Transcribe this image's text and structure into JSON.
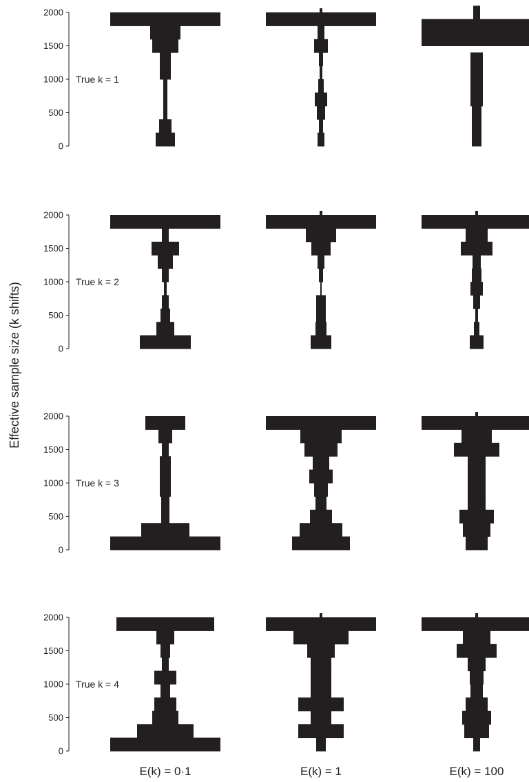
{
  "chart_data": {
    "type": "bar",
    "orientation": "symmetric-horizontal",
    "ylabel": "Effective sample size (k shifts)",
    "ylim": [
      0,
      2000
    ],
    "yticks": [
      0,
      500,
      1000,
      1500,
      2000
    ],
    "bin_width": 200,
    "columns": [
      "E(k) = 0·1",
      "E(k) = 1",
      "E(k) = 100"
    ],
    "rows": [
      "True k = 1",
      "True k = 2",
      "True k = 3",
      "True k = 4"
    ],
    "panels": [
      [
        {
          "row": 0,
          "col": 0,
          "bars": [
            [
              100,
              28
            ],
            [
              300,
              18
            ],
            [
              500,
              6
            ],
            [
              700,
              6
            ],
            [
              900,
              6
            ],
            [
              1100,
              16
            ],
            [
              1300,
              16
            ],
            [
              1500,
              38
            ],
            [
              1700,
              44
            ],
            [
              1900,
              160
            ]
          ]
        },
        {
          "row": 0,
          "col": 1,
          "bars": [
            [
              100,
              10
            ],
            [
              300,
              6
            ],
            [
              500,
              12
            ],
            [
              700,
              18
            ],
            [
              900,
              8
            ],
            [
              1100,
              4
            ],
            [
              1300,
              6
            ],
            [
              1500,
              20
            ],
            [
              1700,
              10
            ],
            [
              1900,
              160
            ],
            [
              2040,
              4
            ]
          ]
        },
        {
          "row": 0,
          "col": 2,
          "bars": [
            [
              100,
              14
            ],
            [
              300,
              14
            ],
            [
              500,
              14
            ],
            [
              700,
              18
            ],
            [
              900,
              18
            ],
            [
              1100,
              18
            ],
            [
              1300,
              18
            ],
            [
              1600,
              160
            ],
            [
              1800,
              160
            ],
            [
              2000,
              10
            ]
          ]
        }
      ],
      [
        {
          "row": 1,
          "col": 0,
          "bars": [
            [
              100,
              74
            ],
            [
              300,
              26
            ],
            [
              500,
              14
            ],
            [
              700,
              10
            ],
            [
              900,
              4
            ],
            [
              1100,
              10
            ],
            [
              1300,
              22
            ],
            [
              1500,
              40
            ],
            [
              1700,
              10
            ],
            [
              1900,
              160
            ]
          ]
        },
        {
          "row": 1,
          "col": 1,
          "bars": [
            [
              100,
              30
            ],
            [
              300,
              16
            ],
            [
              500,
              14
            ],
            [
              700,
              14
            ],
            [
              900,
              2
            ],
            [
              1100,
              6
            ],
            [
              1300,
              10
            ],
            [
              1500,
              28
            ],
            [
              1700,
              44
            ],
            [
              1900,
              160
            ],
            [
              2040,
              4
            ]
          ]
        },
        {
          "row": 1,
          "col": 2,
          "bars": [
            [
              100,
              20
            ],
            [
              300,
              8
            ],
            [
              500,
              4
            ],
            [
              700,
              10
            ],
            [
              900,
              18
            ],
            [
              1100,
              14
            ],
            [
              1300,
              12
            ],
            [
              1500,
              46
            ],
            [
              1700,
              32
            ],
            [
              1900,
              160
            ],
            [
              2040,
              4
            ]
          ]
        }
      ],
      [
        {
          "row": 2,
          "col": 0,
          "bars": [
            [
              100,
              160
            ],
            [
              300,
              70
            ],
            [
              500,
              12
            ],
            [
              700,
              12
            ],
            [
              900,
              16
            ],
            [
              1100,
              16
            ],
            [
              1300,
              16
            ],
            [
              1500,
              10
            ],
            [
              1700,
              20
            ],
            [
              1900,
              58
            ]
          ]
        },
        {
          "row": 2,
          "col": 1,
          "bars": [
            [
              100,
              84
            ],
            [
              300,
              62
            ],
            [
              500,
              32
            ],
            [
              700,
              16
            ],
            [
              900,
              20
            ],
            [
              1100,
              34
            ],
            [
              1300,
              24
            ],
            [
              1500,
              48
            ],
            [
              1700,
              60
            ],
            [
              1900,
              160
            ]
          ]
        },
        {
          "row": 2,
          "col": 2,
          "bars": [
            [
              100,
              32
            ],
            [
              300,
              40
            ],
            [
              500,
              50
            ],
            [
              700,
              26
            ],
            [
              900,
              26
            ],
            [
              1100,
              26
            ],
            [
              1300,
              26
            ],
            [
              1500,
              66
            ],
            [
              1700,
              44
            ],
            [
              1900,
              160
            ],
            [
              2040,
              4
            ]
          ]
        }
      ],
      [
        {
          "row": 3,
          "col": 0,
          "bars": [
            [
              100,
              160
            ],
            [
              300,
              82
            ],
            [
              500,
              38
            ],
            [
              700,
              32
            ],
            [
              900,
              14
            ],
            [
              1100,
              32
            ],
            [
              1300,
              10
            ],
            [
              1500,
              14
            ],
            [
              1700,
              26
            ],
            [
              1900,
              142
            ]
          ]
        },
        {
          "row": 3,
          "col": 1,
          "bars": [
            [
              100,
              14
            ],
            [
              300,
              66
            ],
            [
              500,
              30
            ],
            [
              700,
              66
            ],
            [
              900,
              30
            ],
            [
              1100,
              30
            ],
            [
              1300,
              30
            ],
            [
              1500,
              40
            ],
            [
              1700,
              80
            ],
            [
              1900,
              160
            ],
            [
              2040,
              4
            ]
          ]
        },
        {
          "row": 3,
          "col": 2,
          "bars": [
            [
              100,
              10
            ],
            [
              300,
              36
            ],
            [
              500,
              42
            ],
            [
              700,
              32
            ],
            [
              900,
              18
            ],
            [
              1100,
              20
            ],
            [
              1300,
              26
            ],
            [
              1500,
              58
            ],
            [
              1700,
              40
            ],
            [
              1900,
              160
            ],
            [
              2040,
              4
            ]
          ]
        }
      ]
    ]
  }
}
